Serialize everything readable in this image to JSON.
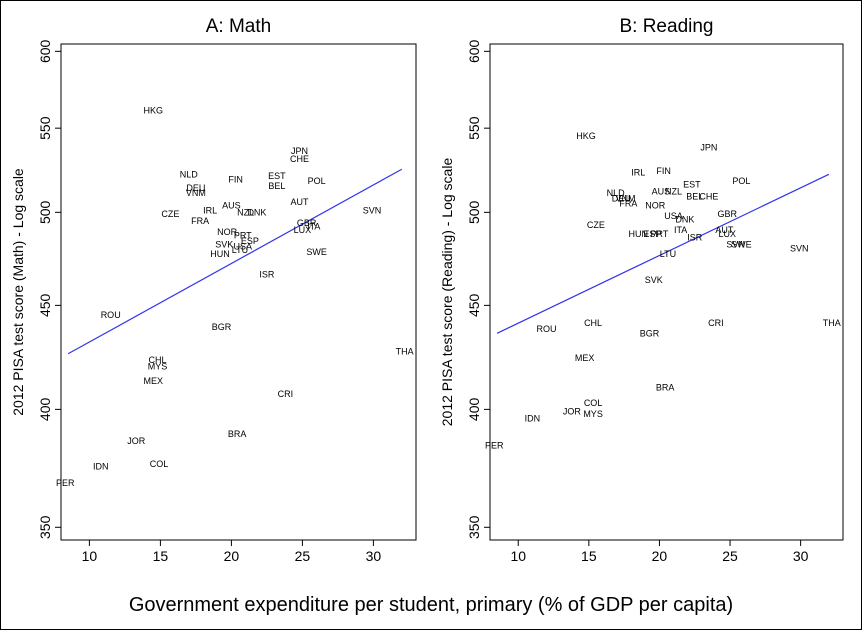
{
  "chart_data": [
    {
      "type": "scatter",
      "title": "A: Math",
      "ylabel": "2012 PISA test score (Math) - Log scale",
      "xlim": [
        8,
        33
      ],
      "ylim": [
        345,
        605
      ],
      "y_scale": "log",
      "xticks": [
        10,
        15,
        20,
        25,
        30
      ],
      "yticks": [
        350,
        400,
        450,
        500,
        550,
        600
      ],
      "fit_line": {
        "x": [
          8.5,
          32
        ],
        "y": [
          426,
          525
        ]
      },
      "points": [
        {
          "label": "HKG",
          "x": 14.5,
          "y": 561
        },
        {
          "label": "NLD",
          "x": 17,
          "y": 522
        },
        {
          "label": "DEU",
          "x": 17.5,
          "y": 514
        },
        {
          "label": "VNM",
          "x": 17.5,
          "y": 511
        },
        {
          "label": "FIN",
          "x": 20.3,
          "y": 519
        },
        {
          "label": "JPN",
          "x": 24.8,
          "y": 536
        },
        {
          "label": "CHE",
          "x": 24.8,
          "y": 531
        },
        {
          "label": "EST",
          "x": 23.2,
          "y": 521
        },
        {
          "label": "BEL",
          "x": 23.2,
          "y": 515
        },
        {
          "label": "POL",
          "x": 26,
          "y": 518
        },
        {
          "label": "AUT",
          "x": 24.8,
          "y": 506
        },
        {
          "label": "CZE",
          "x": 15.7,
          "y": 499
        },
        {
          "label": "IRL",
          "x": 18.5,
          "y": 501
        },
        {
          "label": "AUS",
          "x": 20,
          "y": 504
        },
        {
          "label": "NZL",
          "x": 21,
          "y": 500
        },
        {
          "label": "DNK",
          "x": 21.8,
          "y": 500
        },
        {
          "label": "FRA",
          "x": 17.8,
          "y": 495
        },
        {
          "label": "SVN",
          "x": 29.9,
          "y": 501
        },
        {
          "label": "GBR",
          "x": 25.3,
          "y": 494
        },
        {
          "label": "ITA",
          "x": 25.8,
          "y": 492
        },
        {
          "label": "LUX",
          "x": 25,
          "y": 490
        },
        {
          "label": "NOR",
          "x": 19.7,
          "y": 489
        },
        {
          "label": "PRT",
          "x": 20.8,
          "y": 487
        },
        {
          "label": "ESP",
          "x": 21.3,
          "y": 484
        },
        {
          "label": "SVK",
          "x": 19.5,
          "y": 482
        },
        {
          "label": "USA",
          "x": 20.8,
          "y": 481
        },
        {
          "label": "LTU",
          "x": 20.6,
          "y": 479
        },
        {
          "label": "HUN",
          "x": 19.2,
          "y": 477
        },
        {
          "label": "SWE",
          "x": 26,
          "y": 478
        },
        {
          "label": "ISR",
          "x": 22.5,
          "y": 466
        },
        {
          "label": "ROU",
          "x": 11.5,
          "y": 445
        },
        {
          "label": "BGR",
          "x": 19.3,
          "y": 439
        },
        {
          "label": "CHL",
          "x": 14.8,
          "y": 423
        },
        {
          "label": "MYS",
          "x": 14.8,
          "y": 420
        },
        {
          "label": "MEX",
          "x": 14.5,
          "y": 413
        },
        {
          "label": "CRI",
          "x": 23.8,
          "y": 407
        },
        {
          "label": "THA",
          "x": 32.2,
          "y": 427
        },
        {
          "label": "BRA",
          "x": 20.4,
          "y": 389
        },
        {
          "label": "JOR",
          "x": 13.3,
          "y": 386
        },
        {
          "label": "IDN",
          "x": 10.8,
          "y": 375
        },
        {
          "label": "COL",
          "x": 14.9,
          "y": 376
        },
        {
          "label": "PER",
          "x": 8.3,
          "y": 368,
          "color": "#ee0000"
        }
      ]
    },
    {
      "type": "scatter",
      "title": "B: Reading",
      "ylabel": "2012 PISA test score (Reading) - Log scale",
      "xlim": [
        8,
        33
      ],
      "ylim": [
        345,
        605
      ],
      "y_scale": "log",
      "xticks": [
        10,
        15,
        20,
        25,
        30
      ],
      "yticks": [
        350,
        400,
        450,
        500,
        550,
        600
      ],
      "fit_line": {
        "x": [
          8.5,
          32
        ],
        "y": [
          436,
          522
        ]
      },
      "points": [
        {
          "label": "HKG",
          "x": 14.8,
          "y": 545
        },
        {
          "label": "JPN",
          "x": 23.5,
          "y": 538
        },
        {
          "label": "IRL",
          "x": 18.5,
          "y": 523
        },
        {
          "label": "FIN",
          "x": 20.3,
          "y": 524
        },
        {
          "label": "EST",
          "x": 22.3,
          "y": 516
        },
        {
          "label": "POL",
          "x": 25.8,
          "y": 518
        },
        {
          "label": "AUS",
          "x": 20.1,
          "y": 512
        },
        {
          "label": "NZL",
          "x": 21,
          "y": 512
        },
        {
          "label": "BEL",
          "x": 22.5,
          "y": 509
        },
        {
          "label": "CHE",
          "x": 23.5,
          "y": 509
        },
        {
          "label": "NLD",
          "x": 16.9,
          "y": 511
        },
        {
          "label": "DEU",
          "x": 17.3,
          "y": 508
        },
        {
          "label": "VNM",
          "x": 17.6,
          "y": 508
        },
        {
          "label": "FRA",
          "x": 17.8,
          "y": 505
        },
        {
          "label": "NOR",
          "x": 19.7,
          "y": 504
        },
        {
          "label": "USA",
          "x": 21,
          "y": 498
        },
        {
          "label": "GBR",
          "x": 24.8,
          "y": 499
        },
        {
          "label": "DNK",
          "x": 21.8,
          "y": 496
        },
        {
          "label": "CZE",
          "x": 15.5,
          "y": 493
        },
        {
          "label": "HUN",
          "x": 18.5,
          "y": 488
        },
        {
          "label": "ESP",
          "x": 19.5,
          "y": 488
        },
        {
          "label": "PRT",
          "x": 20,
          "y": 488
        },
        {
          "label": "ITA",
          "x": 21.5,
          "y": 490
        },
        {
          "label": "ISR",
          "x": 22.5,
          "y": 486
        },
        {
          "label": "AUT",
          "x": 24.6,
          "y": 490
        },
        {
          "label": "LUX",
          "x": 24.8,
          "y": 488
        },
        {
          "label": "SVN",
          "x": 25.4,
          "y": 482
        },
        {
          "label": "SWE",
          "x": 25.8,
          "y": 482
        },
        {
          "label": "SVN",
          "x": 29.9,
          "y": 480
        },
        {
          "label": "LTU",
          "x": 20.6,
          "y": 477
        },
        {
          "label": "SVK",
          "x": 19.6,
          "y": 463
        },
        {
          "label": "CHL",
          "x": 15.3,
          "y": 441
        },
        {
          "label": "CRI",
          "x": 24,
          "y": 441
        },
        {
          "label": "THA",
          "x": 32.2,
          "y": 441
        },
        {
          "label": "ROU",
          "x": 12,
          "y": 438
        },
        {
          "label": "BGR",
          "x": 19.3,
          "y": 436
        },
        {
          "label": "MEX",
          "x": 14.7,
          "y": 424
        },
        {
          "label": "BRA",
          "x": 20.4,
          "y": 410
        },
        {
          "label": "COL",
          "x": 15.3,
          "y": 403
        },
        {
          "label": "JOR",
          "x": 13.8,
          "y": 399
        },
        {
          "label": "MYS",
          "x": 15.3,
          "y": 398
        },
        {
          "label": "IDN",
          "x": 11,
          "y": 396
        },
        {
          "label": "PER",
          "x": 8.3,
          "y": 384,
          "color": "#ee0000"
        }
      ]
    }
  ],
  "xlabel": "Government expenditure per student, primary (% of GDP per capita)"
}
